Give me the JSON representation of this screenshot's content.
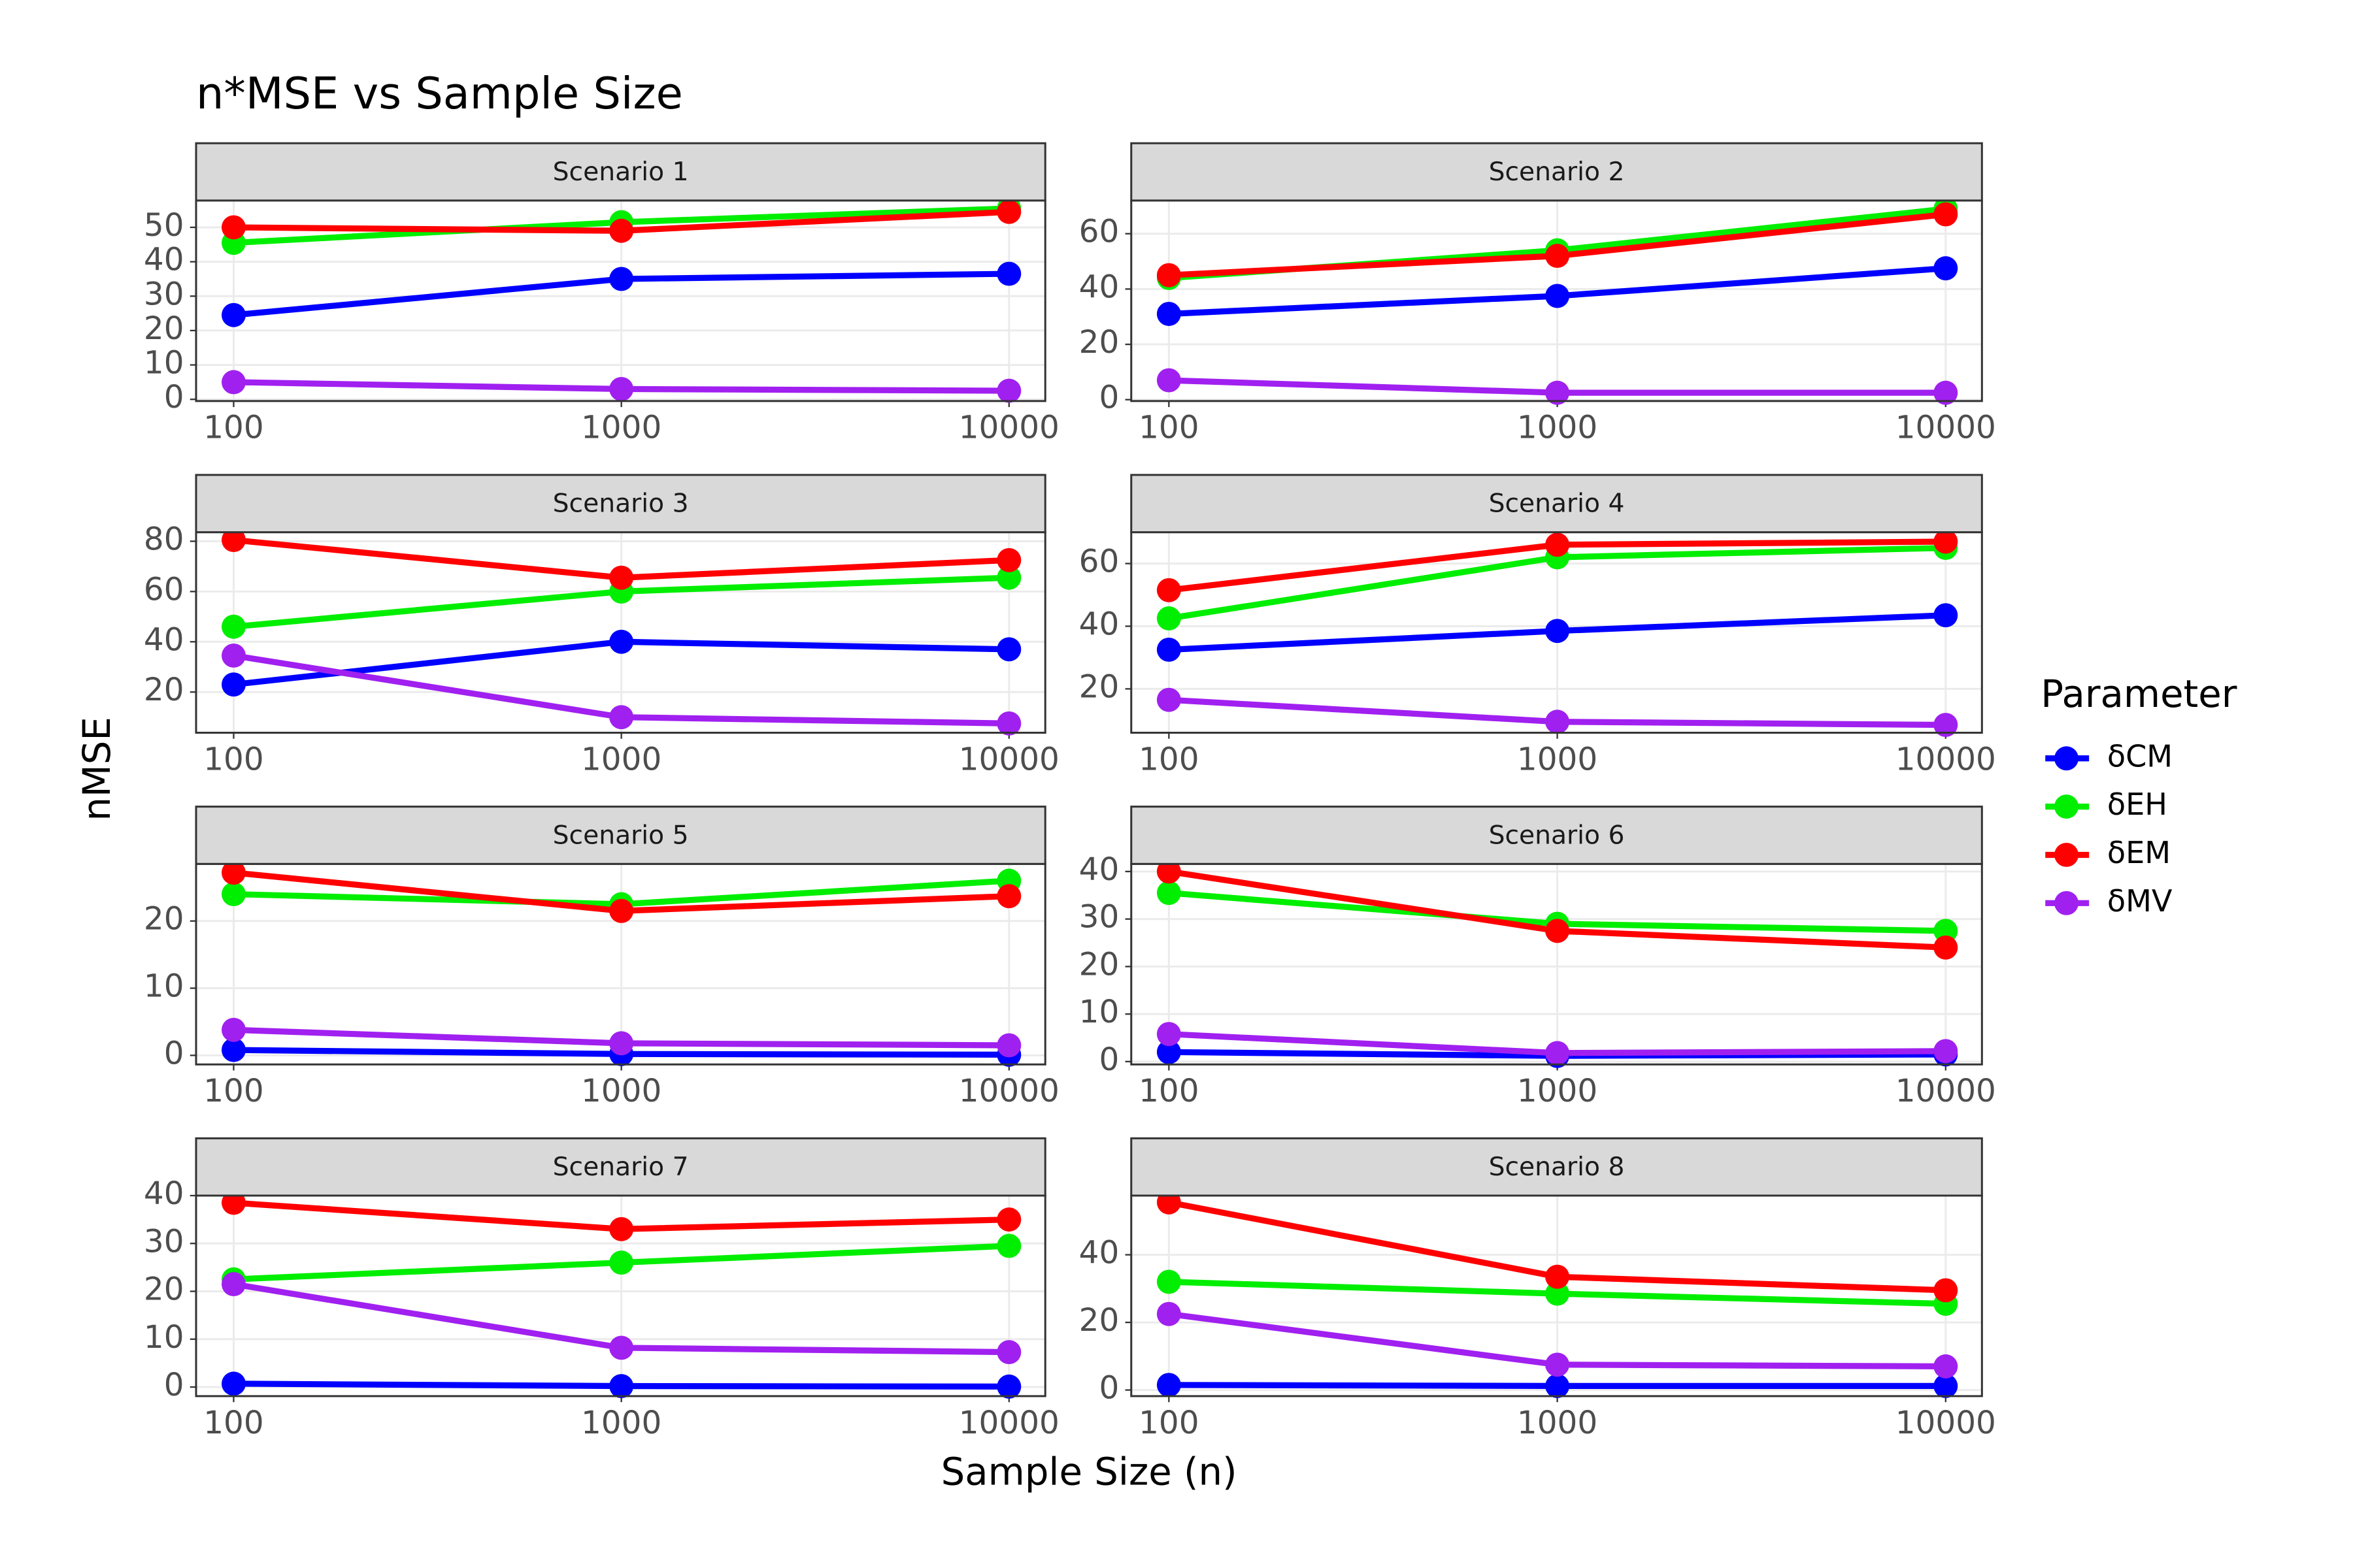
{
  "title": "n*MSE vs Sample Size",
  "xlabel": "Sample Size (n)",
  "ylabel": "nMSE",
  "legend": {
    "title": "Parameter",
    "position": "right"
  },
  "chart_data": [
    {
      "type": "line",
      "title": "Scenario 1",
      "x": [
        100,
        1000,
        10000
      ],
      "xlim": [
        80,
        12400
      ],
      "xticks": [
        100,
        1000,
        10000
      ],
      "xlog": true,
      "ylim": [
        -0.5,
        57.8
      ],
      "yticks": [
        0,
        10,
        20,
        30,
        40,
        50
      ],
      "grid": true,
      "series": [
        {
          "name": "δCM",
          "color": "#0000ff",
          "values": [
            24.5,
            35,
            36.5
          ]
        },
        {
          "name": "δEH",
          "color": "#00ee00",
          "values": [
            45.5,
            51.5,
            55.5
          ]
        },
        {
          "name": "δEM",
          "color": "#ff0000",
          "values": [
            50,
            49,
            54.5
          ]
        },
        {
          "name": "δMV",
          "color": "#a020f0",
          "values": [
            5,
            3,
            2.5
          ]
        }
      ]
    },
    {
      "type": "line",
      "title": "Scenario 2",
      "x": [
        100,
        1000,
        10000
      ],
      "xlim": [
        80,
        12400
      ],
      "xticks": [
        100,
        1000,
        10000
      ],
      "xlog": true,
      "ylim": [
        -0.5,
        72
      ],
      "yticks": [
        0,
        20,
        40,
        60
      ],
      "grid": true,
      "series": [
        {
          "name": "δCM",
          "color": "#0000ff",
          "values": [
            31,
            37.5,
            47.5
          ]
        },
        {
          "name": "δEH",
          "color": "#00ee00",
          "values": [
            44,
            54,
            69
          ]
        },
        {
          "name": "δEM",
          "color": "#ff0000",
          "values": [
            45,
            52,
            67
          ]
        },
        {
          "name": "δMV",
          "color": "#a020f0",
          "values": [
            7,
            2.5,
            2.5
          ]
        }
      ]
    },
    {
      "type": "line",
      "title": "Scenario 3",
      "x": [
        100,
        1000,
        10000
      ],
      "xlim": [
        80,
        12400
      ],
      "xticks": [
        100,
        1000,
        10000
      ],
      "xlog": true,
      "ylim": [
        3.8,
        83.6
      ],
      "yticks": [
        20,
        40,
        60,
        80
      ],
      "grid": true,
      "series": [
        {
          "name": "δCM",
          "color": "#0000ff",
          "values": [
            23,
            40,
            37
          ]
        },
        {
          "name": "δEH",
          "color": "#00ee00",
          "values": [
            46,
            60,
            65.5
          ]
        },
        {
          "name": "δEM",
          "color": "#ff0000",
          "values": [
            80.5,
            65.5,
            72.5
          ]
        },
        {
          "name": "δMV",
          "color": "#a020f0",
          "values": [
            34.5,
            10,
            7.5
          ]
        }
      ]
    },
    {
      "type": "line",
      "title": "Scenario 4",
      "x": [
        100,
        1000,
        10000
      ],
      "xlim": [
        80,
        12400
      ],
      "xticks": [
        100,
        1000,
        10000
      ],
      "xlog": true,
      "ylim": [
        6,
        70
      ],
      "yticks": [
        20,
        40,
        60
      ],
      "grid": true,
      "series": [
        {
          "name": "δCM",
          "color": "#0000ff",
          "values": [
            32.5,
            38.5,
            43.5
          ]
        },
        {
          "name": "δEH",
          "color": "#00ee00",
          "values": [
            42.5,
            62,
            65
          ]
        },
        {
          "name": "δEM",
          "color": "#ff0000",
          "values": [
            51.5,
            66,
            67
          ]
        },
        {
          "name": "δMV",
          "color": "#a020f0",
          "values": [
            16.5,
            9.5,
            8.5
          ]
        }
      ]
    },
    {
      "type": "line",
      "title": "Scenario 5",
      "x": [
        100,
        1000,
        10000
      ],
      "xlim": [
        80,
        12400
      ],
      "xticks": [
        100,
        1000,
        10000
      ],
      "xlog": true,
      "ylim": [
        -1.35,
        28.5
      ],
      "yticks": [
        0,
        10,
        20
      ],
      "grid": true,
      "series": [
        {
          "name": "δCM",
          "color": "#0000ff",
          "values": [
            0.8,
            0.2,
            0.1
          ]
        },
        {
          "name": "δEH",
          "color": "#00ee00",
          "values": [
            24,
            22.5,
            26
          ]
        },
        {
          "name": "δEM",
          "color": "#ff0000",
          "values": [
            27.2,
            21.5,
            23.7
          ]
        },
        {
          "name": "δMV",
          "color": "#a020f0",
          "values": [
            3.8,
            1.8,
            1.5
          ]
        }
      ]
    },
    {
      "type": "line",
      "title": "Scenario 6",
      "x": [
        100,
        1000,
        10000
      ],
      "xlim": [
        80,
        12400
      ],
      "xticks": [
        100,
        1000,
        10000
      ],
      "xlog": true,
      "ylim": [
        -0.6,
        41.6
      ],
      "yticks": [
        0,
        10,
        20,
        30,
        40
      ],
      "grid": true,
      "series": [
        {
          "name": "δCM",
          "color": "#0000ff",
          "values": [
            2,
            1.2,
            1.5
          ]
        },
        {
          "name": "δEH",
          "color": "#00ee00",
          "values": [
            35.5,
            29,
            27.5
          ]
        },
        {
          "name": "δEM",
          "color": "#ff0000",
          "values": [
            40,
            27.5,
            24
          ]
        },
        {
          "name": "δMV",
          "color": "#a020f0",
          "values": [
            5.8,
            1.8,
            2.2
          ]
        }
      ]
    },
    {
      "type": "line",
      "title": "Scenario 7",
      "x": [
        100,
        1000,
        10000
      ],
      "xlim": [
        80,
        12400
      ],
      "xticks": [
        100,
        1000,
        10000
      ],
      "xlog": true,
      "ylim": [
        -1.9,
        40
      ],
      "yticks": [
        0,
        10,
        20,
        30,
        40
      ],
      "grid": true,
      "series": [
        {
          "name": "δCM",
          "color": "#0000ff",
          "values": [
            0.7,
            0.2,
            0.1
          ]
        },
        {
          "name": "δEH",
          "color": "#00ee00",
          "values": [
            22.5,
            26,
            29.5
          ]
        },
        {
          "name": "δEM",
          "color": "#ff0000",
          "values": [
            38.5,
            33,
            35
          ]
        },
        {
          "name": "δMV",
          "color": "#a020f0",
          "values": [
            21.5,
            8.2,
            7.3
          ]
        }
      ]
    },
    {
      "type": "line",
      "title": "Scenario 8",
      "x": [
        100,
        1000,
        10000
      ],
      "xlim": [
        80,
        12400
      ],
      "xticks": [
        100,
        1000,
        10000
      ],
      "xlog": true,
      "ylim": [
        -1.8,
        57.5
      ],
      "yticks": [
        0,
        20,
        40
      ],
      "grid": true,
      "series": [
        {
          "name": "δCM",
          "color": "#0000ff",
          "values": [
            1.5,
            1.2,
            1.2
          ]
        },
        {
          "name": "δEH",
          "color": "#00ee00",
          "values": [
            32,
            28.5,
            25.5
          ]
        },
        {
          "name": "δEM",
          "color": "#ff0000",
          "values": [
            55.5,
            33.5,
            29.5
          ]
        },
        {
          "name": "δMV",
          "color": "#a020f0",
          "values": [
            22.5,
            7.5,
            7
          ]
        }
      ]
    }
  ]
}
